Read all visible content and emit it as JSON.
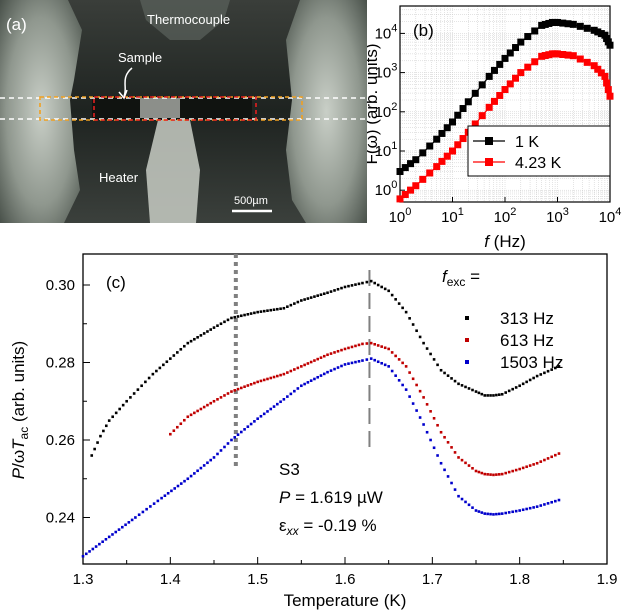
{
  "photo": {
    "panel_label": "(a)",
    "label_thermocouple": "Thermocouple",
    "label_sample": "Sample",
    "label_heater": "Heater",
    "scalebar_label": "500µm"
  },
  "panel_b": {
    "panel_label": "(b)",
    "xlabel_italic": "f",
    "xlabel_rest": " (Hz)",
    "ylabel": "F(ω) (arb. units)",
    "x_ticks": [
      {
        "base": "10",
        "exp": "0"
      },
      {
        "base": "10",
        "exp": "1"
      },
      {
        "base": "10",
        "exp": "2"
      },
      {
        "base": "10",
        "exp": "3"
      },
      {
        "base": "10",
        "exp": "4"
      }
    ],
    "y_ticks": [
      {
        "base": "10",
        "exp": "0"
      },
      {
        "base": "10",
        "exp": "1"
      },
      {
        "base": "10",
        "exp": "2"
      },
      {
        "base": "10",
        "exp": "3"
      },
      {
        "base": "10",
        "exp": "4"
      }
    ],
    "legend": [
      "1 K",
      "4.23 K"
    ],
    "colors": [
      "#000000",
      "#ff0000"
    ]
  },
  "panel_c": {
    "panel_label": "(c)",
    "xlabel": "Temperature (K)",
    "ylabel": "P/ωT_ac (arb. units)",
    "x_ticks": [
      "1.3",
      "1.4",
      "1.5",
      "1.6",
      "1.7",
      "1.8",
      "1.9"
    ],
    "y_ticks": [
      "0.24",
      "0.26",
      "0.28",
      "0.30"
    ],
    "legend_title": "f_exc =",
    "legend": [
      "313 Hz",
      "613 Hz",
      "1503 Hz"
    ],
    "colors": [
      "#000000",
      "#c00000",
      "#0000cc"
    ],
    "annotation_sample": "S3",
    "annotation_power": "P = 1.619 µW",
    "annotation_strain": "ε_xx = -0.19 %",
    "dotted_line_x": 1.475,
    "dashed_line_x": 1.628
  },
  "chart_data": [
    {
      "type": "scatter",
      "title": "",
      "xlabel": "f (Hz)",
      "ylabel": "F(ω) (arb. units)",
      "xscale": "log",
      "yscale": "log",
      "xlim": [
        1,
        10000
      ],
      "ylim": [
        0.5,
        50000
      ],
      "grid": true,
      "legend_position": "bottom-right",
      "series": [
        {
          "name": "1 K",
          "x": [
            1,
            2,
            5,
            10,
            20,
            50,
            100,
            200,
            500,
            800,
            1000,
            2000,
            5000,
            8000,
            10000
          ],
          "y": [
            3,
            6,
            20,
            55,
            180,
            800,
            2300,
            6000,
            16000,
            19000,
            19000,
            17000,
            12000,
            9000,
            5000
          ]
        },
        {
          "name": "4.23 K",
          "x": [
            1,
            2,
            5,
            10,
            20,
            50,
            100,
            200,
            500,
            800,
            1000,
            2000,
            5000,
            8000,
            10000
          ],
          "y": [
            0.6,
            1.3,
            4,
            10,
            30,
            130,
            370,
            1000,
            2600,
            3000,
            3000,
            2700,
            1500,
            800,
            250
          ]
        }
      ]
    },
    {
      "type": "scatter",
      "title": "",
      "xlabel": "Temperature (K)",
      "ylabel": "P/ωT_ac (arb. units)",
      "xlim": [
        1.3,
        1.9
      ],
      "ylim": [
        0.228,
        0.308
      ],
      "grid": false,
      "legend_position": "top-right",
      "series": [
        {
          "name": "313 Hz",
          "x": [
            1.31,
            1.32,
            1.33,
            1.35,
            1.38,
            1.4,
            1.42,
            1.45,
            1.47,
            1.5,
            1.53,
            1.55,
            1.58,
            1.6,
            1.62,
            1.63,
            1.65,
            1.67,
            1.69,
            1.71,
            1.73,
            1.75,
            1.76,
            1.77,
            1.78,
            1.8,
            1.82,
            1.845
          ],
          "y": [
            0.256,
            0.261,
            0.265,
            0.27,
            0.277,
            0.281,
            0.285,
            0.289,
            0.2915,
            0.293,
            0.294,
            0.296,
            0.298,
            0.2995,
            0.3005,
            0.301,
            0.2985,
            0.293,
            0.285,
            0.278,
            0.2745,
            0.2725,
            0.2715,
            0.2715,
            0.2718,
            0.274,
            0.2765,
            0.279
          ]
        },
        {
          "name": "613 Hz",
          "x": [
            1.4,
            1.42,
            1.45,
            1.47,
            1.5,
            1.53,
            1.55,
            1.58,
            1.6,
            1.62,
            1.63,
            1.65,
            1.67,
            1.69,
            1.71,
            1.73,
            1.75,
            1.76,
            1.77,
            1.78,
            1.8,
            1.82,
            1.845
          ],
          "y": [
            0.2615,
            0.266,
            0.27,
            0.2725,
            0.275,
            0.277,
            0.279,
            0.282,
            0.2835,
            0.2848,
            0.285,
            0.2835,
            0.279,
            0.271,
            0.262,
            0.2555,
            0.252,
            0.2512,
            0.251,
            0.2512,
            0.2525,
            0.254,
            0.2565
          ]
        },
        {
          "name": "1503 Hz",
          "x": [
            1.3,
            1.33,
            1.36,
            1.39,
            1.42,
            1.45,
            1.47,
            1.5,
            1.53,
            1.55,
            1.58,
            1.6,
            1.62,
            1.63,
            1.65,
            1.67,
            1.69,
            1.71,
            1.73,
            1.75,
            1.76,
            1.77,
            1.78,
            1.8,
            1.82,
            1.845
          ],
          "y": [
            0.23,
            0.235,
            0.24,
            0.245,
            0.25,
            0.2555,
            0.26,
            0.2655,
            0.2705,
            0.274,
            0.2775,
            0.2795,
            0.2805,
            0.281,
            0.279,
            0.273,
            0.264,
            0.254,
            0.2455,
            0.2418,
            0.241,
            0.2408,
            0.241,
            0.2418,
            0.2428,
            0.2445
          ]
        }
      ]
    }
  ]
}
